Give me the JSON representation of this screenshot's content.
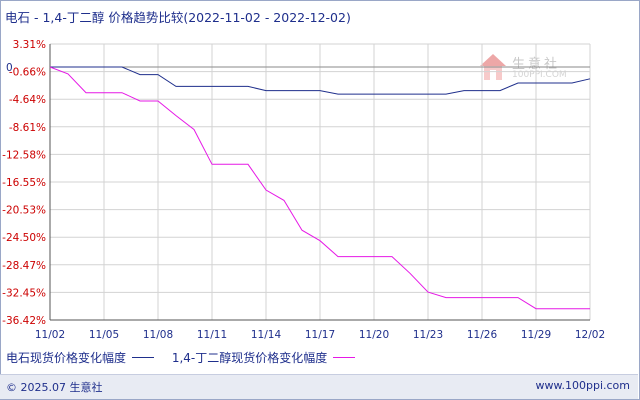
{
  "title": "电石 - 1,4-丁二醇 价格趋势比较(2022-11-02 - 2022-12-02)",
  "watermark": {
    "name": "生意社",
    "url": "100PPI.COM"
  },
  "footer": {
    "copyright": "© 2025.07 生意社",
    "website": "www.100ppi.com"
  },
  "colors": {
    "series1": "#1f2f8c",
    "series2": "#e619e6",
    "grid": "#d3d3d3",
    "axis": "#555555",
    "ytick": "#cc0000"
  },
  "chart_data": {
    "type": "line",
    "y_ticks": [
      "3.31%",
      "-0.66%",
      "-4.64%",
      "-8.61%",
      "-12.58%",
      "-16.55%",
      "-20.53%",
      "-24.50%",
      "-28.47%",
      "-32.45%",
      "-36.42%"
    ],
    "zero_label": "0",
    "x_tick_labels": [
      "11/02",
      "11/05",
      "11/08",
      "11/11",
      "11/14",
      "11/17",
      "11/20",
      "11/23",
      "11/26",
      "11/29",
      "12/02"
    ],
    "x_tick_days": [
      0,
      3,
      6,
      9,
      12,
      15,
      18,
      21,
      24,
      27,
      30
    ],
    "ylim": [
      -36.42,
      3.31
    ],
    "series": [
      {
        "name": "电石现货价格变化幅度",
        "x": [
          0,
          4,
          5,
          6,
          7,
          8,
          9,
          10,
          11,
          12,
          13,
          14,
          15,
          16,
          17,
          18,
          19,
          20,
          21,
          22,
          23,
          24,
          25,
          26,
          27,
          28,
          29,
          30
        ],
        "y": [
          0,
          0,
          -1.1,
          -1.1,
          -2.8,
          -2.8,
          -2.8,
          -2.8,
          -2.8,
          -3.4,
          -3.4,
          -3.4,
          -3.4,
          -3.9,
          -3.9,
          -3.9,
          -3.9,
          -3.9,
          -3.9,
          -3.9,
          -3.4,
          -3.4,
          -3.4,
          -2.3,
          -2.3,
          -2.3,
          -2.3,
          -1.7
        ]
      },
      {
        "name": "1,4-丁二醇现货价格变化幅度",
        "x": [
          0,
          1,
          2,
          3,
          4,
          5,
          6,
          7,
          8,
          9,
          10,
          11,
          12,
          13,
          14,
          15,
          16,
          17,
          18,
          19,
          20,
          21,
          22,
          23,
          24,
          25,
          26,
          27,
          28,
          29,
          30
        ],
        "y": [
          0,
          -1.0,
          -3.7,
          -3.7,
          -3.7,
          -4.9,
          -4.9,
          -7.0,
          -9.0,
          -14.0,
          -14.0,
          -14.0,
          -17.7,
          -19.2,
          -23.5,
          -25.0,
          -27.3,
          -27.3,
          -27.3,
          -27.3,
          -29.7,
          -32.4,
          -33.2,
          -33.2,
          -33.2,
          -33.2,
          -33.2,
          -34.8,
          -34.8,
          -34.8,
          -34.8
        ]
      }
    ],
    "grid": true,
    "legend_position": "bottom"
  }
}
